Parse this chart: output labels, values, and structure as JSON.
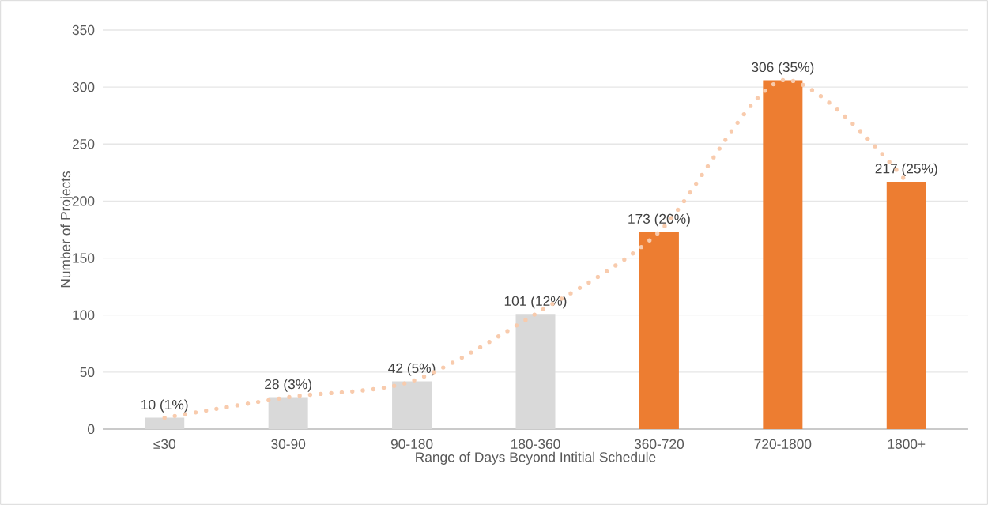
{
  "chart_data": {
    "type": "bar",
    "xlabel": "Range of Days Beyond Intitial Schedule",
    "ylabel": "Number of Projects",
    "categories": [
      "≤30",
      "30-90",
      "90-180",
      "180-360",
      "360-720",
      "720-1800",
      "1800+"
    ],
    "series": [
      {
        "colors": [
          "#d9d9d9",
          "#d9d9d9",
          "#d9d9d9",
          "#d9d9d9",
          "#ed7d31",
          "#ed7d31",
          "#ed7d31"
        ],
        "values": [
          10,
          28,
          42,
          101,
          173,
          306,
          217
        ],
        "value_labels": [
          "10 (1%)",
          "28 (3%)",
          "42 (5%)",
          "101 (12%)",
          "173 (20%)",
          "306 (35%)",
          "217 (25%)"
        ]
      },
      {
        "type": "line",
        "color": "#f8cbad",
        "line_style": "dotted",
        "values": [
          10,
          28,
          42,
          101,
          173,
          306,
          217
        ]
      }
    ],
    "ylim": [
      0,
      350
    ],
    "yticks": [
      0,
      50,
      100,
      150,
      200,
      250,
      300,
      350
    ],
    "grid": "y"
  }
}
